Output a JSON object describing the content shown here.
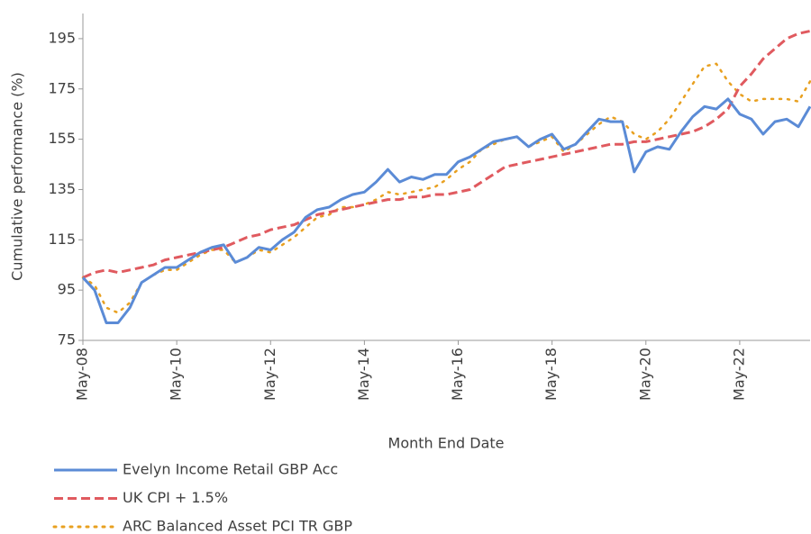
{
  "chart_data": {
    "type": "line",
    "x_label": "Month End Date",
    "y_label": "Cumulative performance (%)",
    "categories": [
      "May-08",
      null,
      null,
      null,
      null,
      null,
      null,
      null,
      "May-10",
      null,
      null,
      null,
      null,
      null,
      null,
      null,
      "May-12",
      null,
      null,
      null,
      null,
      null,
      null,
      null,
      "May-14",
      null,
      null,
      null,
      null,
      null,
      null,
      null,
      "May-16",
      null,
      null,
      null,
      null,
      null,
      null,
      null,
      "May-18",
      null,
      null,
      null,
      null,
      null,
      null,
      null,
      "May-20",
      null,
      null,
      null,
      null,
      null,
      null,
      null,
      "May-22",
      null,
      null,
      null,
      null,
      null,
      null
    ],
    "series": [
      {
        "name": "Evelyn Income Retail GBP Acc",
        "color": "#5b8bd6",
        "line_style": "solid",
        "values": [
          100,
          95,
          82,
          82,
          88,
          98,
          101,
          104,
          104,
          107,
          110,
          112,
          113,
          106,
          108,
          112,
          111,
          115,
          118,
          124,
          127,
          128,
          131,
          133,
          134,
          138,
          143,
          138,
          140,
          139,
          141,
          141,
          146,
          148,
          151,
          154,
          155,
          156,
          152,
          155,
          157,
          151,
          153,
          158,
          163,
          162,
          162,
          142,
          150,
          152,
          151,
          158,
          164,
          168,
          167,
          171,
          165,
          163,
          157,
          162,
          163,
          160,
          168
        ]
      },
      {
        "name": "UK CPI + 1.5%",
        "color": "#e05a5f",
        "line_style": "dashed",
        "values": [
          100,
          102,
          103,
          102,
          103,
          104,
          105,
          107,
          108,
          109,
          110,
          111,
          112,
          114,
          116,
          117,
          119,
          120,
          121,
          123,
          125,
          126,
          127,
          128,
          129,
          130,
          131,
          131,
          132,
          132,
          133,
          133,
          134,
          135,
          138,
          141,
          144,
          145,
          146,
          147,
          148,
          149,
          150,
          151,
          152,
          153,
          153,
          154,
          154,
          155,
          156,
          157,
          158,
          160,
          163,
          167,
          176,
          181,
          187,
          191,
          195,
          197,
          198
        ]
      },
      {
        "name": "ARC Balanced Asset PCI TR GBP",
        "color": "#e8a020",
        "line_style": "dotted",
        "values": [
          100,
          97,
          88,
          86,
          90,
          98,
          101,
          103,
          103,
          106,
          109,
          111,
          111,
          106,
          108,
          111,
          110,
          113,
          116,
          120,
          124,
          125,
          128,
          128,
          129,
          131,
          134,
          133,
          134,
          135,
          136,
          139,
          143,
          146,
          151,
          153,
          155,
          156,
          152,
          154,
          156,
          150,
          153,
          157,
          161,
          164,
          162,
          157,
          155,
          158,
          163,
          170,
          177,
          184,
          185,
          178,
          173,
          170,
          171,
          171,
          171,
          170,
          178
        ]
      }
    ],
    "ylim": [
      75,
      205
    ],
    "yticks": [
      75,
      95,
      115,
      135,
      155,
      175,
      195
    ],
    "grid": false
  }
}
